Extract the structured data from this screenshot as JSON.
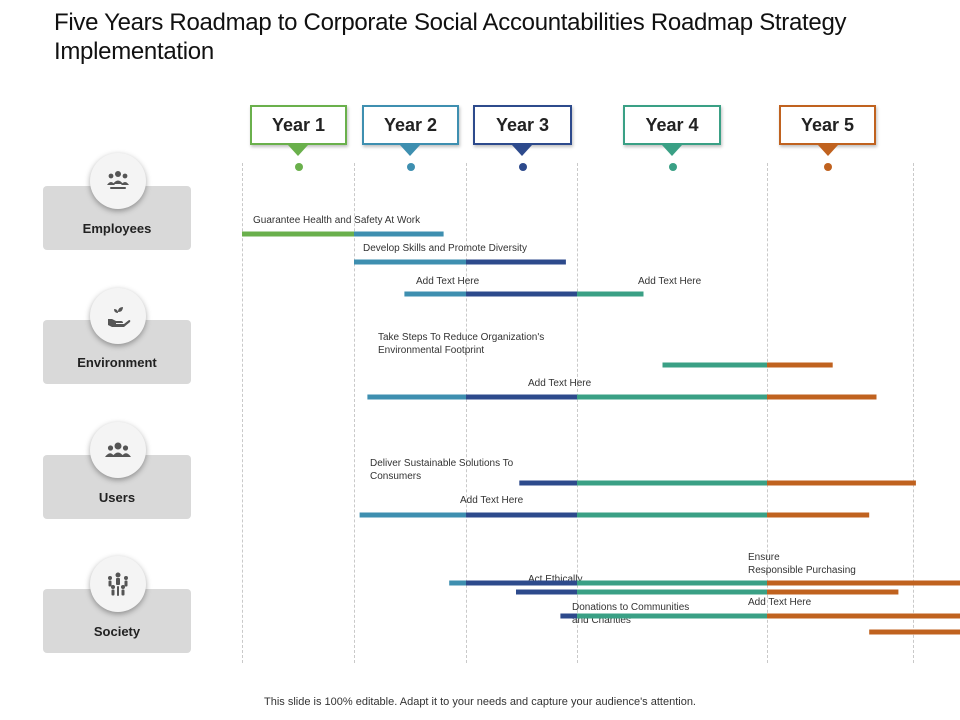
{
  "title": "Five Years Roadmap to Corporate Social Accountabilities Roadmap Strategy Implementation",
  "footer": "This slide is 100% editable. Adapt it to your needs and capture your audience's attention.",
  "colors": {
    "year1": "#6ab04c",
    "year2": "#3e8fb0",
    "year3": "#2d4a8c",
    "year4": "#3aa085",
    "year5": "#c0621f"
  },
  "years": [
    {
      "label": "Year 1"
    },
    {
      "label": "Year 2"
    },
    {
      "label": "Year 3"
    },
    {
      "label": "Year 4"
    },
    {
      "label": "Year 5"
    }
  ],
  "categories": [
    {
      "label": "Employees",
      "icon": "group-icon"
    },
    {
      "label": "Environment",
      "icon": "hand-plant-icon"
    },
    {
      "label": "Users",
      "icon": "users-icon"
    },
    {
      "label": "Society",
      "icon": "people-network-icon"
    }
  ],
  "tasks": [
    {
      "label": "Guarantee Health and Safety At Work",
      "start": 1.0,
      "end": 2.8,
      "category": "Employees"
    },
    {
      "label": "Develop Skills and Promote Diversity",
      "start": 2.0,
      "end": 3.9,
      "category": "Employees"
    },
    {
      "label": "Add Text Here",
      "start": 2.45,
      "end": 4.35,
      "category": "Employees"
    },
    {
      "label": "Add Text Here",
      "start": 4.45,
      "end": 5.45,
      "category": "Employees"
    },
    {
      "label": "Take Steps To Reduce Organization's\nEnvironmental Footprint",
      "start": 2.12,
      "end": 5.75,
      "category": "Environment"
    },
    {
      "label": "Add Text Here",
      "start": 3.48,
      "end": 6.02,
      "category": "Environment"
    },
    {
      "label": "Deliver Sustainable Solutions To\nConsumers",
      "start": 2.05,
      "end": 5.7,
      "category": "Users"
    },
    {
      "label": "Add Text Here",
      "start": 2.85,
      "end": 7.2,
      "category": "Users"
    },
    {
      "label": "Ensure\nResponsible Purchasing",
      "start": 5.75,
      "end": 6.8,
      "category": "Society"
    },
    {
      "label": "Act Ethically",
      "start": 3.45,
      "end": 5.9,
      "category": "Society"
    },
    {
      "label": "Add Text Here",
      "start": 5.7,
      "end": 6.75,
      "category": "Society"
    },
    {
      "label": "Donations to Communities\nand Charities",
      "start": 3.85,
      "end": 6.05,
      "category": "Society"
    }
  ]
}
